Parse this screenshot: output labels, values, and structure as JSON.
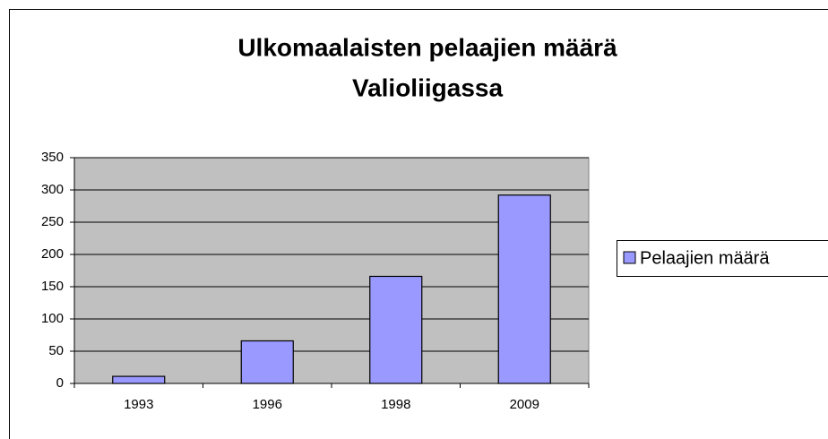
{
  "chart_data": {
    "type": "bar",
    "title": [
      "Ulkomaalaisten pelaajien määrä",
      "Valioliigassa"
    ],
    "categories": [
      "1993",
      "1996",
      "1998",
      "2009"
    ],
    "series": [
      {
        "name": "Pelaajien määrä",
        "color": "#9999ff",
        "values": [
          11,
          66,
          166,
          292
        ]
      }
    ],
    "ylim": [
      0,
      350
    ],
    "yticks": [
      0,
      50,
      100,
      150,
      200,
      250,
      300,
      350
    ],
    "grid": true,
    "legend": "right"
  }
}
